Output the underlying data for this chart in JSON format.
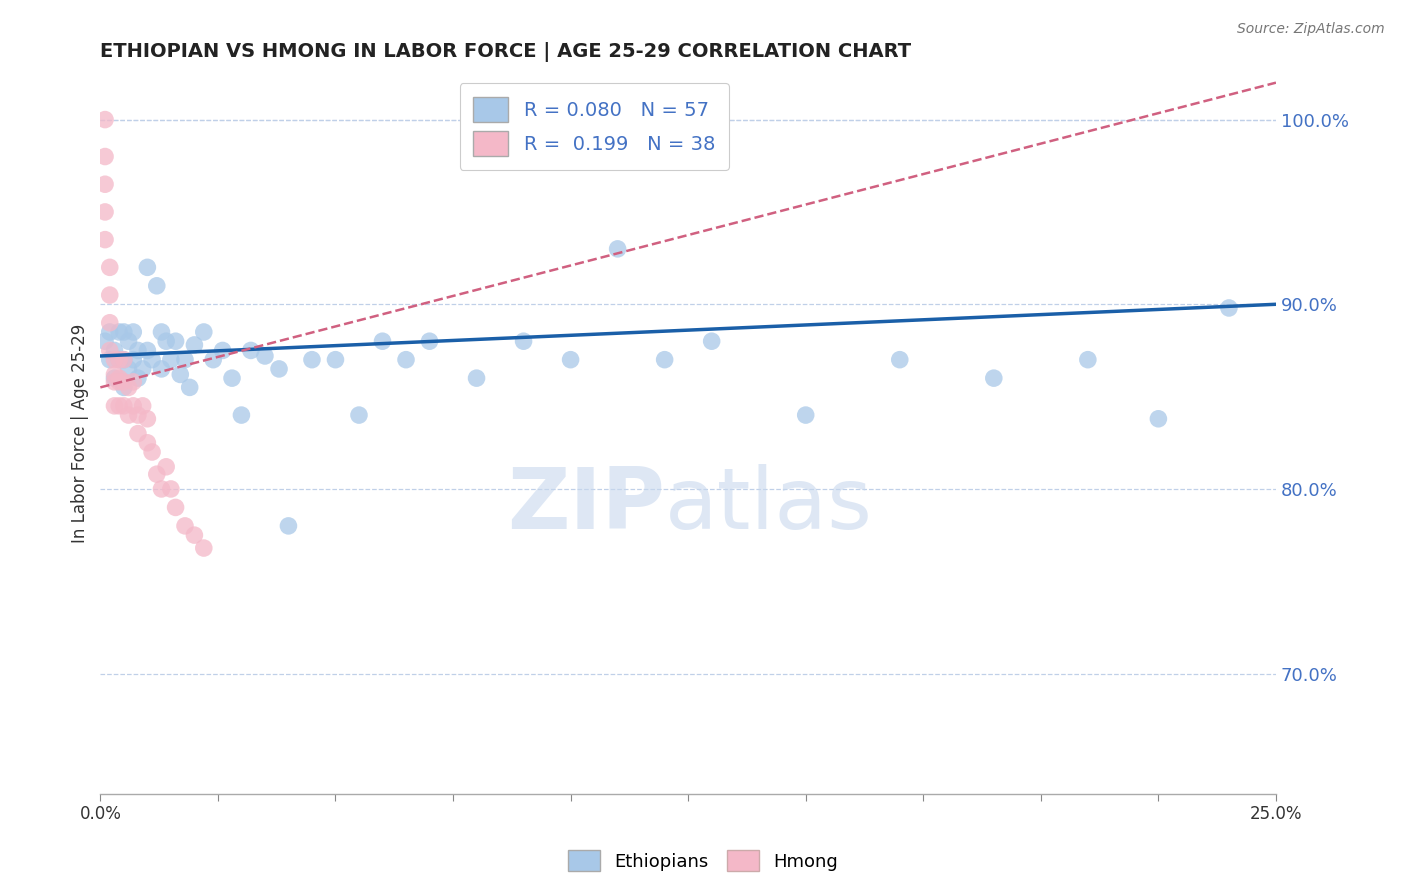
{
  "title": "ETHIOPIAN VS HMONG IN LABOR FORCE | AGE 25-29 CORRELATION CHART",
  "source_text": "Source: ZipAtlas.com",
  "ylabel": "In Labor Force | Age 25-29",
  "watermark_zip": "ZIP",
  "watermark_atlas": "atlas",
  "legend_ethiopians": "Ethiopians",
  "legend_hmong": "Hmong",
  "r_ethiopian": 0.08,
  "n_ethiopian": 57,
  "r_hmong": 0.199,
  "n_hmong": 38,
  "xlim": [
    0.0,
    0.25
  ],
  "ylim": [
    0.635,
    1.025
  ],
  "y_ticks": [
    0.7,
    0.8,
    0.9,
    1.0
  ],
  "color_ethiopian": "#a8c8e8",
  "color_hmong": "#f4b8c8",
  "color_trendline_ethiopian": "#1a5fa8",
  "color_trendline_hmong": "#d06080",
  "color_axis_right": "#4472c4",
  "color_grid": "#c0d0e8",
  "color_title": "#222222",
  "background_color": "#ffffff",
  "ethiopian_x": [
    0.001,
    0.002,
    0.002,
    0.003,
    0.003,
    0.004,
    0.004,
    0.005,
    0.005,
    0.005,
    0.006,
    0.006,
    0.007,
    0.007,
    0.008,
    0.008,
    0.009,
    0.01,
    0.01,
    0.011,
    0.012,
    0.013,
    0.013,
    0.014,
    0.015,
    0.016,
    0.017,
    0.018,
    0.019,
    0.02,
    0.022,
    0.024,
    0.026,
    0.028,
    0.03,
    0.032,
    0.035,
    0.038,
    0.04,
    0.045,
    0.05,
    0.055,
    0.06,
    0.065,
    0.07,
    0.08,
    0.09,
    0.1,
    0.11,
    0.12,
    0.13,
    0.15,
    0.17,
    0.19,
    0.21,
    0.225,
    0.24
  ],
  "ethiopian_y": [
    0.88,
    0.87,
    0.885,
    0.86,
    0.875,
    0.87,
    0.885,
    0.855,
    0.87,
    0.885,
    0.865,
    0.88,
    0.87,
    0.885,
    0.86,
    0.875,
    0.865,
    0.92,
    0.875,
    0.87,
    0.91,
    0.885,
    0.865,
    0.88,
    0.87,
    0.88,
    0.862,
    0.87,
    0.855,
    0.878,
    0.885,
    0.87,
    0.875,
    0.86,
    0.84,
    0.875,
    0.872,
    0.865,
    0.78,
    0.87,
    0.87,
    0.84,
    0.88,
    0.87,
    0.88,
    0.86,
    0.88,
    0.87,
    0.93,
    0.87,
    0.88,
    0.84,
    0.87,
    0.86,
    0.87,
    0.838,
    0.898
  ],
  "hmong_x": [
    0.001,
    0.001,
    0.001,
    0.001,
    0.001,
    0.002,
    0.002,
    0.002,
    0.002,
    0.003,
    0.003,
    0.003,
    0.003,
    0.004,
    0.004,
    0.004,
    0.004,
    0.005,
    0.005,
    0.005,
    0.006,
    0.006,
    0.007,
    0.007,
    0.008,
    0.008,
    0.009,
    0.01,
    0.01,
    0.011,
    0.012,
    0.013,
    0.014,
    0.015,
    0.016,
    0.018,
    0.02,
    0.022
  ],
  "hmong_y": [
    1.0,
    0.98,
    0.965,
    0.95,
    0.935,
    0.92,
    0.905,
    0.89,
    0.875,
    0.87,
    0.858,
    0.845,
    0.862,
    0.87,
    0.858,
    0.845,
    0.86,
    0.87,
    0.858,
    0.845,
    0.855,
    0.84,
    0.858,
    0.845,
    0.84,
    0.83,
    0.845,
    0.838,
    0.825,
    0.82,
    0.808,
    0.8,
    0.812,
    0.8,
    0.79,
    0.78,
    0.775,
    0.768
  ],
  "trendline_eth_y0": 0.872,
  "trendline_eth_y1": 0.9,
  "trendline_hmong_y0": 0.855,
  "trendline_hmong_y1": 1.02
}
